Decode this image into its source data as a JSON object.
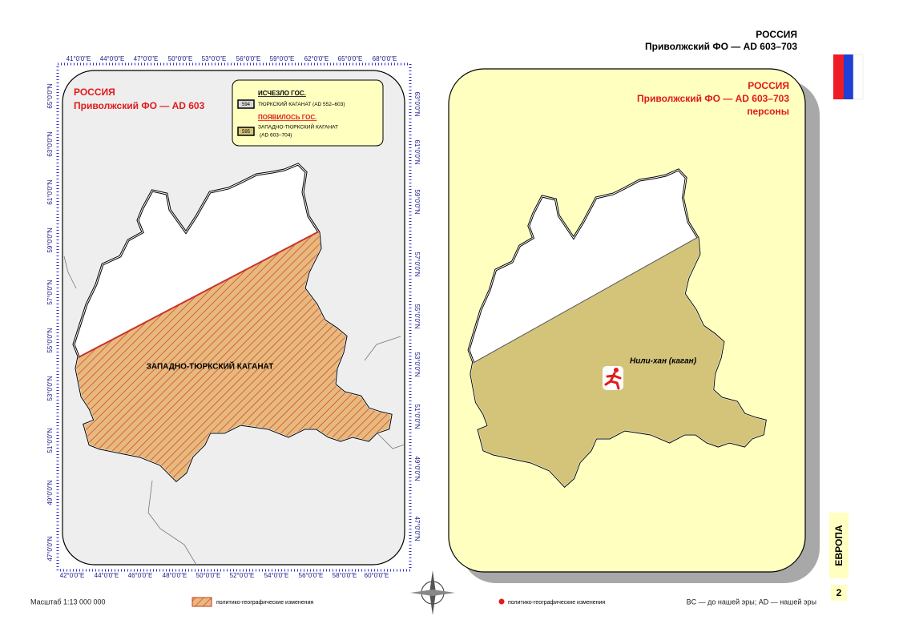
{
  "header": {
    "country": "РОССИЯ",
    "subtitle": "Приволжский ФО — AD 603–703"
  },
  "left_map": {
    "title": "РОССИЯ",
    "subtitle": "Приволжский ФО — AD 603",
    "legend": {
      "removed_heading": "ИСЧЕЗЛО ГОС.",
      "removed_code": "594",
      "removed_name": "ТЮРКСКИЙ КАГАНАТ (AD 552–603)",
      "added_heading": "ПОЯВИЛОСЬ ГОС.",
      "added_code": "595",
      "added_name": "ЗАПАДНО-ТЮРКСКИЙ КАГАНАТ",
      "added_years": "(AD 603–704)"
    },
    "region_label": "ЗАПАДНО-ТЮРКСКИЙ КАГАНАТ",
    "axes": {
      "top": [
        "41°0'0\"E",
        "44°0'0\"E",
        "47°0'0\"E",
        "50°0'0\"E",
        "53°0'0\"E",
        "56°0'0\"E",
        "59°0'0\"E",
        "62°0'0\"E",
        "65°0'0\"E",
        "68°0'0\"E"
      ],
      "bottom": [
        "42°0'0\"E",
        "44°0'0\"E",
        "46°0'0\"E",
        "48°0'0\"E",
        "50°0'0\"E",
        "52°0'0\"E",
        "54°0'0\"E",
        "56°0'0\"E",
        "58°0'0\"E",
        "60°0'0\"E"
      ],
      "left": [
        "65°0'0\"N",
        "63°0'0\"N",
        "61°0'0\"N",
        "59°0'0\"N",
        "57°0'0\"N",
        "55°0'0\"N",
        "53°0'0\"N",
        "51°0'0\"N",
        "49°0'0\"N",
        "47°0'0\"N"
      ],
      "right": [
        "63°0'0\"N",
        "61°0'0\"N",
        "59°0'0\"N",
        "57°0'0\"N",
        "55°0'0\"N",
        "53°0'0\"N",
        "51°0'0\"N",
        "49°0'0\"N",
        "47°0'0\"N"
      ]
    }
  },
  "right_map": {
    "title": "РОССИЯ",
    "subtitle": "Приволжский ФО — AD 603–703",
    "topic": "персоны",
    "person": "Нили-хан (каган)"
  },
  "footer": {
    "scale": "Масштаб 1:13 000 000",
    "legend_hatch": "политико-географические изменения",
    "legend_dot": "политико-географические изменения",
    "era_note": "BC — до нашей эры; AD — нашей эры",
    "section": "ЕВРОПА",
    "page": "2"
  }
}
